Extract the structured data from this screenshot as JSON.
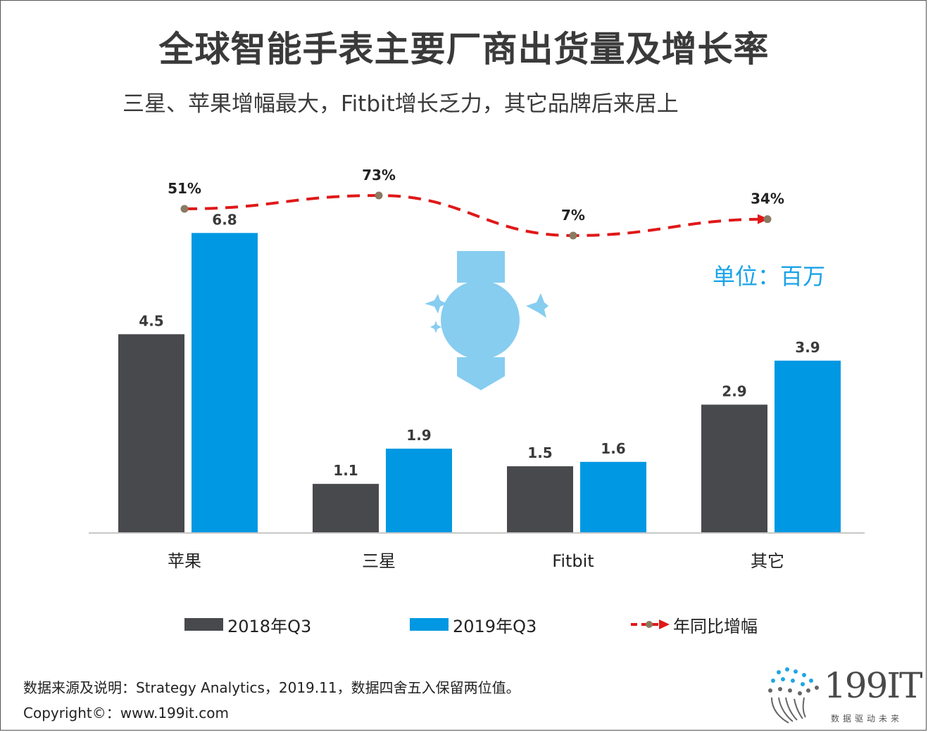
{
  "title": "全球智能手表主要厂商出货量及增长率",
  "subtitle": "三星、苹果增幅最大，Fitbit增长乏力，其它品牌后来居上",
  "unit_label": "单位：百万",
  "colors": {
    "series_2018": "#48494d",
    "series_2019": "#0098e2",
    "growth_line": "#e01818",
    "growth_marker": "#8a7a62",
    "watch": "#87cdf0"
  },
  "chart_data": {
    "type": "bar",
    "categories": [
      "苹果",
      "三星",
      "Fitbit",
      "其它"
    ],
    "series": [
      {
        "name": "2018年Q3",
        "values": [
          4.5,
          1.1,
          1.5,
          2.9
        ],
        "labels": [
          "4.5",
          "1.1",
          "1.5",
          "2.9"
        ]
      },
      {
        "name": "2019年Q3",
        "values": [
          6.8,
          1.9,
          1.6,
          3.9
        ],
        "labels": [
          "6.8",
          "1.9",
          "1.6",
          "3.9"
        ]
      }
    ],
    "line_series": {
      "name": "年同比增幅",
      "values": [
        51,
        73,
        7,
        34
      ],
      "labels": [
        "51%",
        "73%",
        "7%",
        "34%"
      ]
    },
    "ylim": [
      0,
      7.5
    ],
    "xlabel": "",
    "ylabel": ""
  },
  "legend": {
    "item1": "2018年Q3",
    "item2": "2019年Q3",
    "item3": "年同比增幅"
  },
  "footer": {
    "source": "数据来源及说明：Strategy Analytics，2019.11，数据四舍五入保留两位值。",
    "copyright": "Copyright©：www.199it.com"
  },
  "logo": {
    "name": "199IT",
    "tagline": "数据驱动未来"
  }
}
